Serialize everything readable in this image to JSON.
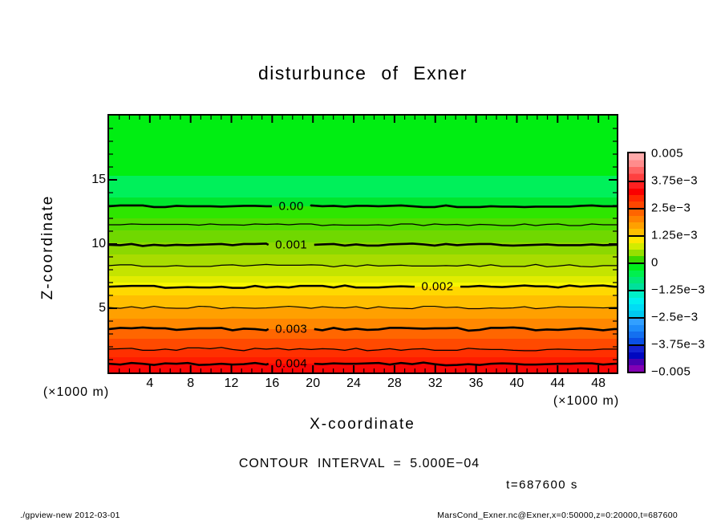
{
  "title": "disturbunce of Exner",
  "axes": {
    "x": {
      "label": "X-coordinate",
      "unit": "(×1000 m)",
      "major_ticks": [
        4,
        8,
        12,
        16,
        20,
        24,
        28,
        32,
        36,
        40,
        44,
        48
      ],
      "minor_step": 1
    },
    "y": {
      "label": "Z-coordinate",
      "unit": "(×1000 m)",
      "major_ticks": [
        5,
        10,
        15
      ],
      "minor_step": 1
    }
  },
  "plot": {
    "frame_color": "#000000",
    "bands": [
      {
        "to": 0.235,
        "color": "#00ee12"
      },
      {
        "to": 0.32,
        "color": "#00f05a"
      },
      {
        "to": 0.353,
        "color": "#00e62e"
      },
      {
        "to": 0.4,
        "color": "#2ee600"
      },
      {
        "to": 0.447,
        "color": "#52dc00"
      },
      {
        "to": 0.494,
        "color": "#70d800"
      },
      {
        "to": 0.54,
        "color": "#8cd800"
      },
      {
        "to": 0.584,
        "color": "#a8dc00"
      },
      {
        "to": 0.625,
        "color": "#c4e400"
      },
      {
        "to": 0.65,
        "color": "#e0ec00"
      },
      {
        "to": 0.666,
        "color": "#f6f600"
      },
      {
        "to": 0.7,
        "color": "#ffd800"
      },
      {
        "to": 0.747,
        "color": "#ffbe00"
      },
      {
        "to": 0.79,
        "color": "#ffa000"
      },
      {
        "to": 0.831,
        "color": "#ff8800"
      },
      {
        "to": 0.87,
        "color": "#ff6600"
      },
      {
        "to": 0.909,
        "color": "#ff4a00"
      },
      {
        "to": 0.94,
        "color": "#ff3000"
      },
      {
        "to": 0.966,
        "color": "#ff1c00"
      },
      {
        "to": 1.0,
        "color": "#fa0505"
      }
    ],
    "contours": [
      {
        "label": "0.00",
        "frac": 0.353,
        "thick": true,
        "label_frac_x": 0.359
      },
      {
        "label": null,
        "frac": 0.425,
        "thick": false,
        "label_frac_x": null
      },
      {
        "label": "0.001",
        "frac": 0.503,
        "thick": true,
        "label_frac_x": 0.359
      },
      {
        "label": null,
        "frac": 0.584,
        "thick": false,
        "label_frac_x": null
      },
      {
        "label": "0.002",
        "frac": 0.666,
        "thick": true,
        "label_frac_x": 0.647
      },
      {
        "label": null,
        "frac": 0.747,
        "thick": false,
        "label_frac_x": null
      },
      {
        "label": "0.003",
        "frac": 0.831,
        "thick": true,
        "label_frac_x": 0.359
      },
      {
        "label": null,
        "frac": 0.909,
        "thick": false,
        "label_frac_x": null
      },
      {
        "label": "0.004",
        "frac": 0.966,
        "thick": true,
        "label_frac_x": 0.359
      }
    ]
  },
  "colorbar": {
    "tick_labels": [
      "0.005",
      "3.75e−3",
      "2.5e−3",
      "1.25e−3",
      "0",
      "−1.25e−3",
      "−2.5e−3",
      "−3.75e−3",
      "−0.005"
    ],
    "boxes": [
      {
        "colors": [
          "#ffaaaa",
          "#ff8c8c",
          "#ff6464",
          "#ff4040"
        ]
      },
      {
        "colors": [
          "#ff2020",
          "#fa0000",
          "#ff2800",
          "#ff4600"
        ]
      },
      {
        "colors": [
          "#ff6400",
          "#ff8200",
          "#ffa000",
          "#ffbe00"
        ]
      },
      {
        "colors": [
          "#ffe600",
          "#d2ec00",
          "#96e000",
          "#3cd800"
        ]
      },
      {
        "colors": [
          "#00ee1c",
          "#00f04e",
          "#00e878",
          "#00e09b"
        ]
      },
      {
        "colors": [
          "#00f0c8",
          "#00f0f0",
          "#00dcf5",
          "#00c8f0"
        ]
      },
      {
        "colors": [
          "#32a0ff",
          "#1e8cfa",
          "#1470f0",
          "#0a50e6"
        ]
      },
      {
        "colors": [
          "#1422d2",
          "#0008c0",
          "#4a00b0",
          "#8200b4"
        ]
      }
    ]
  },
  "annotations": {
    "contour_interval_text": "CONTOUR INTERVAL = 5.000E−04",
    "time_text": "t=687600 s"
  },
  "footer": {
    "left": "./gpview-new  2012-03-01",
    "right": "MarsCond_Exner.nc@Exner,x=0:50000,z=0:20000,t=687600"
  },
  "chart_data": {
    "type": "heatmap",
    "title": "disturbunce of Exner",
    "xlabel": "X-coordinate (×1000 m)",
    "ylabel": "Z-coordinate (×1000 m)",
    "xlim": [
      0,
      50
    ],
    "ylim": [
      0,
      20
    ],
    "value_range": [
      -0.005,
      0.005
    ],
    "contour_interval": 0.0005,
    "grid": false,
    "legend_position": "right",
    "time": "t=687600 s",
    "contour_levels": [
      {
        "value": 0.0,
        "z": 12.9
      },
      {
        "value": 0.0005,
        "z": 11.5
      },
      {
        "value": 0.001,
        "z": 9.9
      },
      {
        "value": 0.0015,
        "z": 8.3
      },
      {
        "value": 0.002,
        "z": 6.7
      },
      {
        "value": 0.0025,
        "z": 5.1
      },
      {
        "value": 0.003,
        "z": 3.4
      },
      {
        "value": 0.0035,
        "z": 1.8
      },
      {
        "value": 0.004,
        "z": 0.7
      }
    ],
    "labeled_levels": [
      0.0,
      0.001,
      0.002,
      0.003,
      0.004
    ],
    "colorbar_ticks": [
      0.005,
      0.00375,
      0.0025,
      0.00125,
      0,
      -0.00125,
      -0.0025,
      -0.00375,
      -0.005
    ],
    "field_description": "horizontally uniform field; value increases downward from about -0.0005 near z=20 to about 0.0045 near z=0"
  }
}
